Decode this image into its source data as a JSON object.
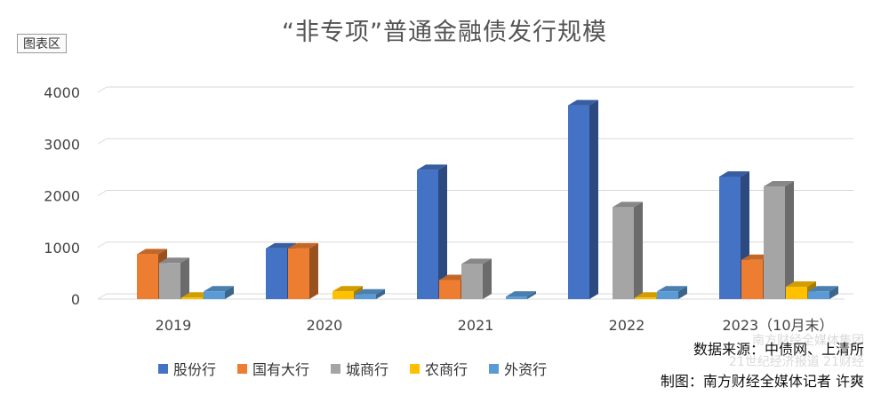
{
  "badge": "图表区",
  "source_line": "数据来源：中债网、上清所",
  "author_line": "制图：南方财经全媒体记者 许爽",
  "watermark": [
    "南方财经全媒体集团",
    "21世纪经济报道 21财经"
  ],
  "colors": {
    "股份行": "#4472C4",
    "国有大行": "#ED7D31",
    "城商行": "#A5A5A5",
    "农商行": "#FFC000",
    "外资行": "#5B9BD5"
  },
  "chart_data": {
    "type": "bar",
    "title": "“非专项”普通金融债发行规模",
    "categories": [
      "2019",
      "2020",
      "2021",
      "2022",
      "2023（10月末）"
    ],
    "series": [
      {
        "name": "股份行",
        "values": [
          0,
          980,
          2500,
          3750,
          2370
        ]
      },
      {
        "name": "国有大行",
        "values": [
          870,
          980,
          370,
          0,
          760
        ]
      },
      {
        "name": "城商行",
        "values": [
          700,
          0,
          680,
          1780,
          2180
        ]
      },
      {
        "name": "农商行",
        "values": [
          30,
          150,
          0,
          30,
          240
        ]
      },
      {
        "name": "外资行",
        "values": [
          150,
          90,
          50,
          150,
          150
        ]
      }
    ],
    "yticks": [
      "0",
      "1000",
      "2000",
      "3000",
      "4000"
    ],
    "ylim": [
      0,
      4000
    ],
    "grid": true,
    "legend": "bottom"
  }
}
